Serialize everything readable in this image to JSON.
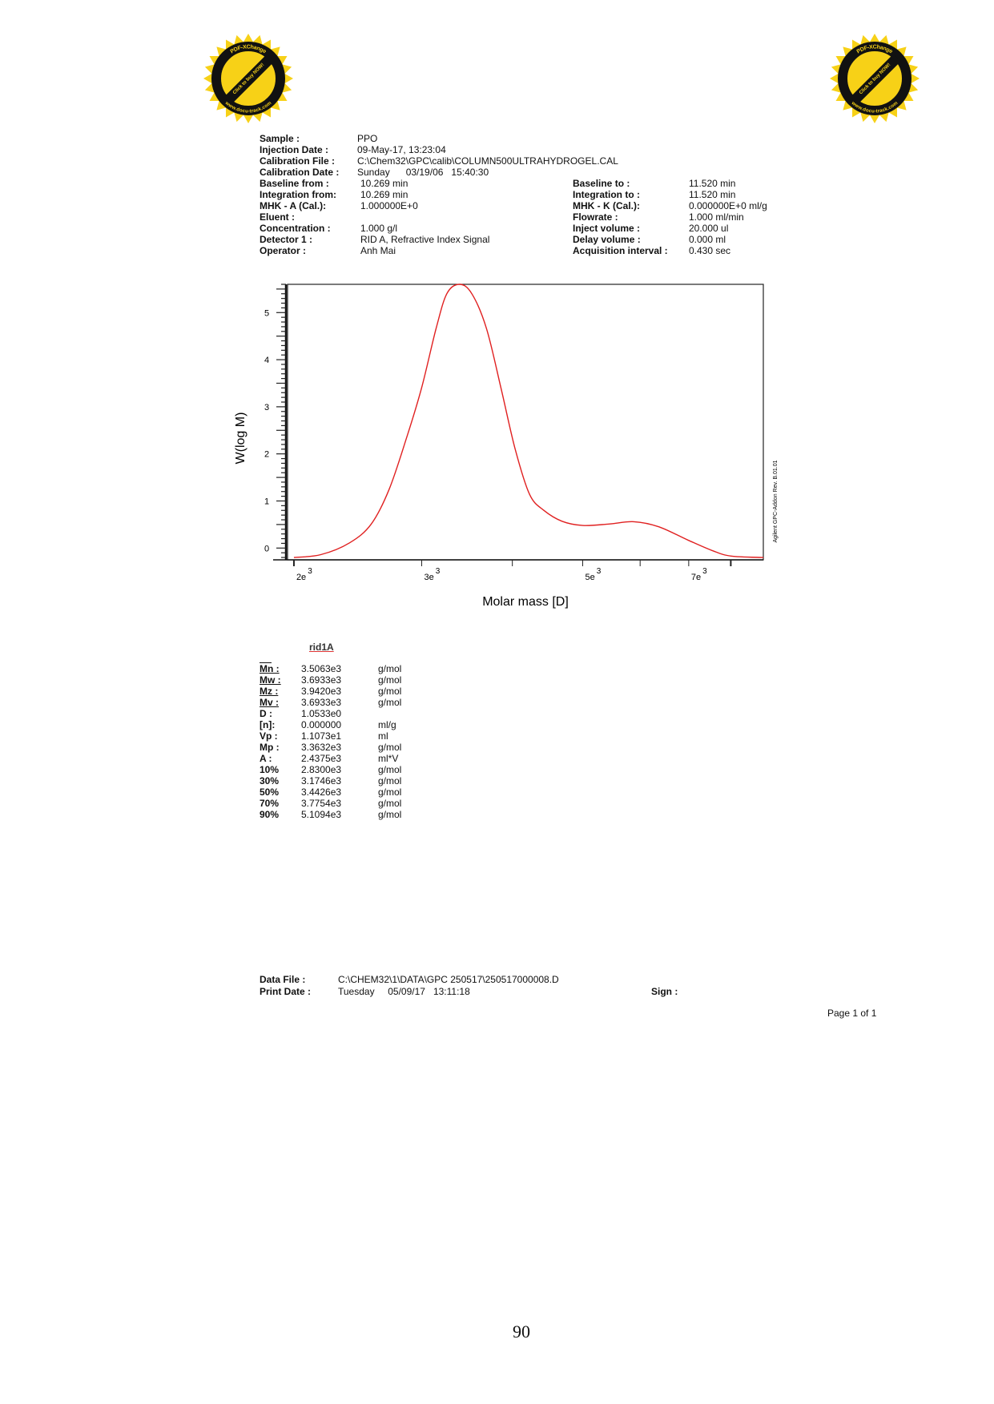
{
  "stamp": {
    "text_top": "PDF-XChange",
    "text_middle": "Click to buy NOW!",
    "text_bottom": "www.docu-track.com",
    "colors": {
      "ring": "#f7d117",
      "band": "#111111"
    }
  },
  "header_left": [
    {
      "label": "Sample :",
      "value": "PPO"
    },
    {
      "label": "Injection Date :",
      "value": "09-May-17, 13:23:04"
    },
    {
      "label": "Calibration File :",
      "value": "C:\\Chem32\\GPC\\calib\\COLUMN500ULTRAHYDROGEL.CAL"
    },
    {
      "label": "Calibration Date :",
      "value": "Sunday      03/19/06   15:40:30"
    },
    {
      "label": "Baseline from :",
      "value": "10.269 min"
    },
    {
      "label": "Integration from:",
      "value": "10.269 min"
    },
    {
      "label": "MHK - A (Cal.):",
      "value": "1.000000E+0"
    },
    {
      "label": "Eluent :",
      "value": ""
    },
    {
      "label": "Concentration :",
      "value": "1.000 g/l"
    },
    {
      "label": "Detector 1 :",
      "value": "RID A, Refractive Index Signal"
    },
    {
      "label": "Operator :",
      "value": "Anh Mai"
    }
  ],
  "header_right": [
    {
      "label": "Baseline to :",
      "value": "11.520 min"
    },
    {
      "label": "Integration to  :",
      "value": "11.520 min"
    },
    {
      "label": "MHK - K (Cal.):",
      "value": "0.000000E+0 ml/g"
    },
    {
      "label": "Flowrate :",
      "value": "1.000 ml/min"
    },
    {
      "label": "Inject volume :",
      "value": "20.000 ul"
    },
    {
      "label": "Delay volume :",
      "value": "0.000 ml"
    },
    {
      "label": "Acquisition interval :",
      "value": "0.430 sec"
    }
  ],
  "chart_data": {
    "type": "line",
    "xlabel": "Molar mass [D]",
    "ylabel": "W(log M)",
    "x_scale": "log",
    "xlim": [
      1960,
      8870
    ],
    "ylim": [
      -0.25,
      5.6
    ],
    "x_ticks": [
      2000,
      3000,
      4000,
      5000,
      6000,
      7000,
      8000
    ],
    "x_tick_labels": [
      {
        "value": 2000,
        "base": "2e",
        "exp": "3"
      },
      {
        "value": 3000,
        "base": "3e",
        "exp": "3"
      },
      {
        "value": 5000,
        "base": "5e",
        "exp": "3"
      },
      {
        "value": 7000,
        "base": "7e",
        "exp": "3"
      }
    ],
    "y_tick_labels": [
      "0",
      "1",
      "2",
      "3",
      "4",
      "5"
    ],
    "grid": false,
    "line_color": "#e02020",
    "side_note": "Agilent GPC-Addon  Rev. B.01.01",
    "series": [
      {
        "x": [
          2000,
          2178,
          2386,
          2556,
          2706,
          2866,
          3000,
          3140,
          3249,
          3382,
          3518,
          3685,
          3857,
          4036,
          4225,
          4422,
          4682,
          5000,
          5432,
          5884,
          6371,
          6982,
          7562,
          8008,
          8872
        ],
        "y": [
          -0.2,
          -0.14,
          0.11,
          0.51,
          1.25,
          2.39,
          3.41,
          4.66,
          5.4,
          5.6,
          5.4,
          4.66,
          3.41,
          2.1,
          1.14,
          0.8,
          0.57,
          0.48,
          0.51,
          0.56,
          0.45,
          0.17,
          -0.06,
          -0.17,
          -0.2
        ]
      }
    ]
  },
  "results": {
    "title": "rid1A",
    "rows": [
      {
        "label": "Mn :",
        "value": "3.5063e3",
        "unit": "g/mol"
      },
      {
        "label": "Mw :",
        "value": "3.6933e3",
        "unit": "g/mol"
      },
      {
        "label": "Mz :",
        "value": "3.9420e3",
        "unit": "g/mol"
      },
      {
        "label": "Mv :",
        "value": "3.6933e3",
        "unit": "g/mol"
      },
      {
        "label": "D  :",
        "value": "1.0533e0",
        "unit": ""
      },
      {
        "label": "[n]:",
        "value": "0.000000",
        "unit": "ml/g"
      },
      {
        "label": "Vp :",
        "value": "1.1073e1",
        "unit": "ml"
      },
      {
        "label": "Mp :",
        "value": "3.3632e3",
        "unit": "g/mol"
      },
      {
        "label": "A  :",
        "value": "2.4375e3",
        "unit": "ml*V"
      },
      {
        "label": "10%",
        "value": "2.8300e3",
        "unit": "g/mol"
      },
      {
        "label": "30%",
        "value": "3.1746e3",
        "unit": "g/mol"
      },
      {
        "label": "50%",
        "value": "3.4426e3",
        "unit": "g/mol"
      },
      {
        "label": "70%",
        "value": "3.7754e3",
        "unit": "g/mol"
      },
      {
        "label": "90%",
        "value": "5.1094e3",
        "unit": "g/mol"
      }
    ]
  },
  "footer": {
    "data_file_label": "Data File :",
    "data_file": "C:\\CHEM32\\1\\DATA\\GPC 250517\\250517000008.D",
    "print_date_label": "Print Date :",
    "print_date": "Tuesday     05/09/17   13:11:18",
    "sign_label": "Sign :",
    "page_info": "Page 1 of 1"
  },
  "page_number": "90"
}
